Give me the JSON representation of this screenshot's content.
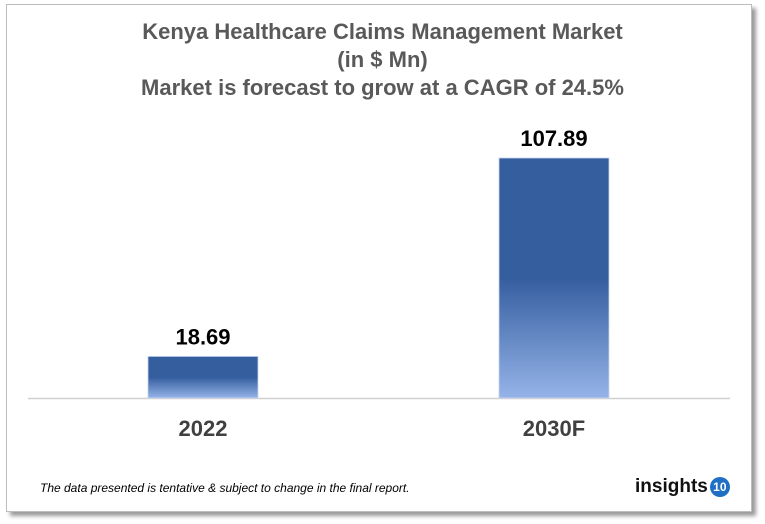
{
  "chart_data": {
    "type": "bar",
    "title": "Kenya Healthcare Claims Management Market",
    "subtitle_unit": "(in $ Mn)",
    "subtitle": "Market is forecast to grow at a CAGR of 24.5%",
    "categories": [
      "2022",
      "2030F"
    ],
    "values": [
      18.69,
      107.89
    ],
    "value_labels": [
      "18.69",
      "107.89"
    ],
    "ylim": [
      0,
      115
    ],
    "grid": false,
    "bar_color_top": "#355E9F",
    "bar_color_bottom": "#95B3E8"
  },
  "footer": {
    "note": "The data presented is tentative & subject to change in the final report.",
    "logo_text": "insights",
    "logo_number": "10"
  }
}
